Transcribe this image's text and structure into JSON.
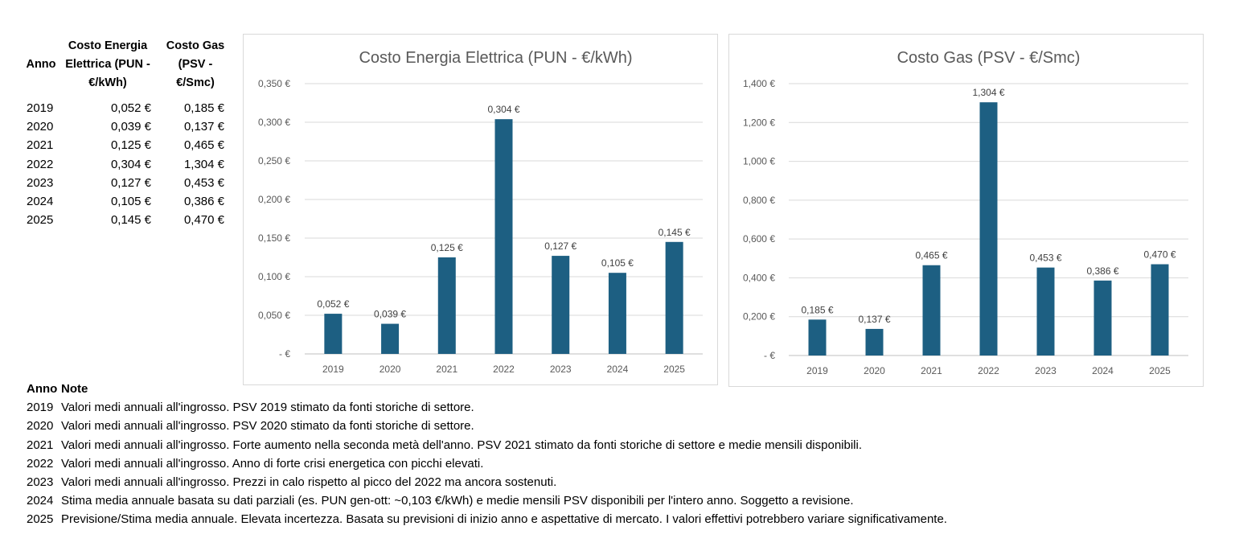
{
  "table": {
    "headers": {
      "year": "Anno",
      "elec": [
        "Costo Energia",
        "Elettrica (PUN -",
        "€/kWh)"
      ],
      "gas": [
        "Costo Gas",
        "(PSV -",
        "€/Smc)"
      ]
    },
    "rows": [
      {
        "year": "2019",
        "elec": "0,052 €",
        "gas": "0,185 €"
      },
      {
        "year": "2020",
        "elec": "0,039 €",
        "gas": "0,137 €"
      },
      {
        "year": "2021",
        "elec": "0,125 €",
        "gas": "0,465 €"
      },
      {
        "year": "2022",
        "elec": "0,304 €",
        "gas": "1,304 €"
      },
      {
        "year": "2023",
        "elec": "0,127 €",
        "gas": "0,453 €"
      },
      {
        "year": "2024",
        "elec": "0,105 €",
        "gas": "0,386 €"
      },
      {
        "year": "2025",
        "elec": "0,145 €",
        "gas": "0,470 €"
      }
    ]
  },
  "chart_data": [
    {
      "type": "bar",
      "title": "Costo Energia Elettrica (PUN - €/kWh)",
      "categories": [
        "2019",
        "2020",
        "2021",
        "2022",
        "2023",
        "2024",
        "2025"
      ],
      "values": [
        0.052,
        0.039,
        0.125,
        0.304,
        0.127,
        0.105,
        0.145
      ],
      "data_labels": [
        "0,052 €",
        "0,039 €",
        "0,125 €",
        "0,304 €",
        "0,127 €",
        "0,105 €",
        "0,145 €"
      ],
      "ylim": [
        0,
        0.35
      ],
      "yticks": [
        0,
        0.05,
        0.1,
        0.15,
        0.2,
        0.25,
        0.3,
        0.35
      ],
      "ytick_labels": [
        "-  €",
        "0,050 €",
        "0,100 €",
        "0,150 €",
        "0,200 €",
        "0,250 €",
        "0,300 €",
        "0,350 €"
      ],
      "grid": true,
      "legend": "none",
      "bar_color": "#1d5f82"
    },
    {
      "type": "bar",
      "title": "Costo Gas (PSV - €/Smc)",
      "categories": [
        "2019",
        "2020",
        "2021",
        "2022",
        "2023",
        "2024",
        "2025"
      ],
      "values": [
        0.185,
        0.137,
        0.465,
        1.304,
        0.453,
        0.386,
        0.47
      ],
      "data_labels": [
        "0,185 €",
        "0,137 €",
        "0,465 €",
        "1,304 €",
        "0,453 €",
        "0,386 €",
        "0,470 €"
      ],
      "ylim": [
        0,
        1.4
      ],
      "yticks": [
        0,
        0.2,
        0.4,
        0.6,
        0.8,
        1.0,
        1.2,
        1.4
      ],
      "ytick_labels": [
        "-  €",
        "0,200 €",
        "0,400 €",
        "0,600 €",
        "0,800 €",
        "1,000 €",
        "1,200 €",
        "1,400 €"
      ],
      "grid": true,
      "legend": "none",
      "bar_color": "#1d5f82"
    }
  ],
  "notes": {
    "header_year": "Anno",
    "header_note": "Note",
    "rows": [
      {
        "year": "2019",
        "text": "Valori medi annuali all'ingrosso. PSV 2019 stimato da fonti storiche di settore."
      },
      {
        "year": "2020",
        "text": "Valori medi annuali all'ingrosso. PSV 2020 stimato da fonti storiche di settore."
      },
      {
        "year": "2021",
        "text": "Valori medi annuali all'ingrosso. Forte aumento nella seconda metà dell'anno. PSV 2021 stimato da fonti storiche di settore e medie mensili disponibili."
      },
      {
        "year": "2022",
        "text": "Valori medi annuali all'ingrosso. Anno di forte crisi energetica con picchi elevati."
      },
      {
        "year": "2023",
        "text": "Valori medi annuali all'ingrosso. Prezzi in calo rispetto al picco del 2022 ma ancora sostenuti."
      },
      {
        "year": "2024",
        "text": "Stima media annuale basata su dati parziali (es. PUN gen-ott: ~0,103 €/kWh) e medie mensili PSV disponibili per l'intero anno. Soggetto a revisione."
      },
      {
        "year": "2025",
        "text": "Previsione/Stima media annuale. Elevata incertezza. Basata su previsioni di inizio anno e aspettative di mercato. I valori effettivi potrebbero variare significativamente."
      }
    ]
  }
}
